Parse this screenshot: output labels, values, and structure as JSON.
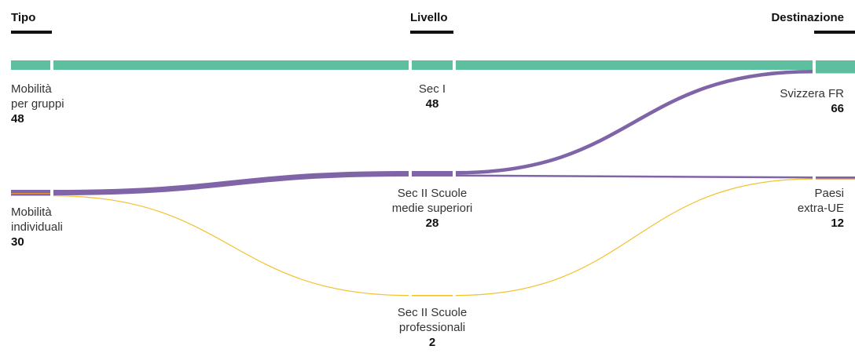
{
  "headers": {
    "tipo": "Tipo",
    "livello": "Livello",
    "destinazione": "Destinazione"
  },
  "chart_data": {
    "type": "sankey",
    "columns": [
      "Tipo",
      "Livello",
      "Destinazione"
    ],
    "nodes": [
      {
        "id": "gruppi",
        "column": 0,
        "label": "Mobilità\nper gruppi",
        "value": 48
      },
      {
        "id": "indiv",
        "column": 0,
        "label": "Mobilità\nindividuali",
        "value": 30
      },
      {
        "id": "sec1",
        "column": 1,
        "label": "Sec I",
        "value": 48
      },
      {
        "id": "secsup",
        "column": 1,
        "label": "Sec II Scuole\nmedie superiori",
        "value": 28
      },
      {
        "id": "secprof",
        "column": 1,
        "label": "Sec II Scuole\nprofessionali",
        "value": 2
      },
      {
        "id": "ch",
        "column": 2,
        "label": "Svizzera FR",
        "value": 66
      },
      {
        "id": "extra",
        "column": 2,
        "label": "Paesi\nextra-UE",
        "value": 12
      }
    ],
    "links": [
      {
        "source": "gruppi",
        "target": "sec1",
        "value": 48,
        "color": "#5dbf9f"
      },
      {
        "source": "indiv",
        "target": "secsup",
        "value": 28,
        "color": "#8064a8"
      },
      {
        "source": "indiv",
        "target": "secprof",
        "value": 2,
        "color": "#f2c12e"
      },
      {
        "source": "sec1",
        "target": "ch",
        "value": 48,
        "color": "#5dbf9f"
      },
      {
        "source": "secsup",
        "target": "ch",
        "value": 18,
        "color": "#8064a8"
      },
      {
        "source": "secsup",
        "target": "extra",
        "value": 10,
        "color": "#8064a8"
      },
      {
        "source": "secprof",
        "target": "extra",
        "value": 2,
        "color": "#f2c12e"
      }
    ],
    "colors": {
      "green": "#5dbf9f",
      "purple": "#8064a8",
      "yellow": "#f2c12e",
      "orange": "#e8903a"
    }
  }
}
